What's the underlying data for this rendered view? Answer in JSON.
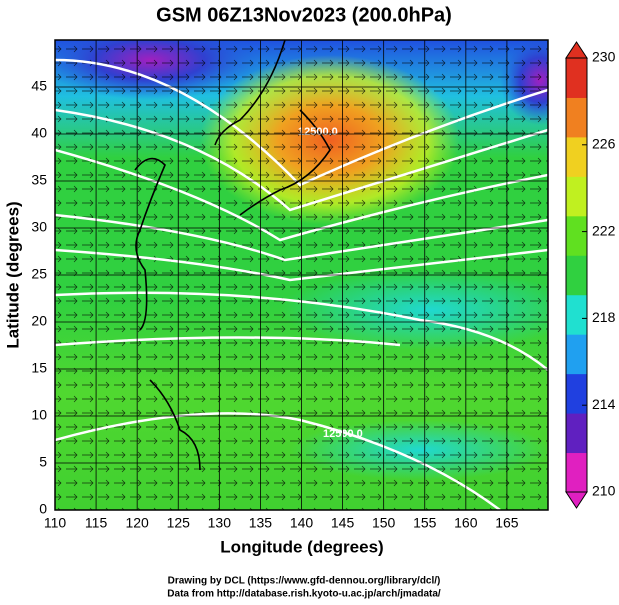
{
  "chart_data": {
    "type": "map",
    "title": "GSM 06Z13Nov2023 (200.0hPa)",
    "xlabel": "Longitude (degrees)",
    "ylabel": "Latitude  (degrees)",
    "xlim": [
      110,
      170
    ],
    "ylim": [
      0,
      50
    ],
    "xticks": [
      110,
      115,
      120,
      125,
      130,
      135,
      140,
      145,
      150,
      155,
      160,
      165
    ],
    "yticks": [
      0,
      5,
      10,
      15,
      20,
      25,
      30,
      35,
      40,
      45
    ],
    "grid": true,
    "contour_labels": [
      "12500.0",
      "12500.0"
    ],
    "colorbar": {
      "lim": [
        210,
        230
      ],
      "ticks": [
        210,
        214,
        218,
        222,
        226,
        230
      ],
      "colors": [
        "#e020c0",
        "#6020c0",
        "#2040e0",
        "#20a0f0",
        "#20e0d0",
        "#30d040",
        "#60e020",
        "#c0f020",
        "#f0d020",
        "#f08020",
        "#e03020"
      ]
    },
    "credits": [
      "Drawing by DCL (https://www.gfd-dennou.org/library/dcl/)",
      "Data from http://database.rish.kyoto-u.ac.jp/arch/jmadata/"
    ]
  }
}
